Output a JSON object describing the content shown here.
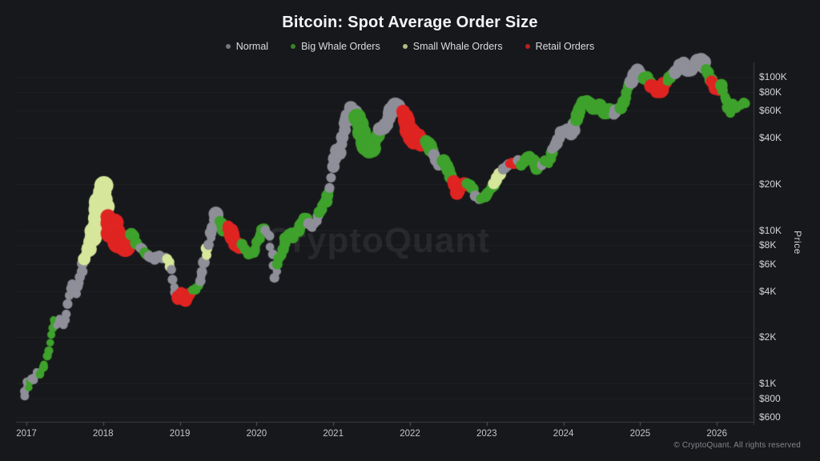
{
  "page": {
    "title": "Bitcoin: Spot Average Order Size",
    "watermark": "CryptoQuant",
    "footer": "© CryptoQuant. All rights reserved"
  },
  "colors": {
    "background": "#17181b",
    "normal": "#8f8f99",
    "big_whale": "#3ea22c",
    "small_whale": "#d6e79c",
    "retail": "#df2422",
    "grid": "rgba(255,255,255,0.045)",
    "axis_line": "#3c3d43",
    "tick_mark": "#55565c"
  },
  "legend": {
    "items": [
      {
        "key": "normal",
        "label": "Normal"
      },
      {
        "key": "big_whale",
        "label": "Big Whale Orders"
      },
      {
        "key": "small_whale",
        "label": "Small Whale Orders"
      },
      {
        "key": "retail",
        "label": "Retail Orders"
      }
    ]
  },
  "chart_data": {
    "type": "scatter",
    "title": "Bitcoin: Spot Average Order Size",
    "xlabel": "",
    "ylabel": "Price",
    "y_scale": "log",
    "x_range": [
      2016.95,
      2026.4
    ],
    "y_range_usd": [
      600,
      130000
    ],
    "grid": "horizontal",
    "legend_position": "top",
    "categories": {
      "n": "normal",
      "b": "big_whale",
      "s": "small_whale",
      "r": "retail"
    },
    "series_legend": [
      "Normal",
      "Big Whale Orders",
      "Small Whale Orders",
      "Retail Orders"
    ],
    "y_ticks": [
      {
        "label": "$100K",
        "value": 100
      },
      {
        "label": "$80K",
        "value": 80
      },
      {
        "label": "$60K",
        "value": 60
      },
      {
        "label": "$40K",
        "value": 40
      },
      {
        "label": "$20K",
        "value": 20
      },
      {
        "label": "$10K",
        "value": 10
      },
      {
        "label": "$8K",
        "value": 8
      },
      {
        "label": "$6K",
        "value": 6
      },
      {
        "label": "$4K",
        "value": 4
      },
      {
        "label": "$2K",
        "value": 2
      },
      {
        "label": "$1K",
        "value": 1
      },
      {
        "label": "$800",
        "value": 0.8
      },
      {
        "label": "$600",
        "value": 0.6
      }
    ],
    "x_ticks": [
      {
        "label": "2017",
        "value": 2017
      },
      {
        "label": "2018",
        "value": 2018
      },
      {
        "label": "2019",
        "value": 2019
      },
      {
        "label": "2020",
        "value": 2020
      },
      {
        "label": "2021",
        "value": 2021
      },
      {
        "label": "2022",
        "value": 2022
      },
      {
        "label": "2023",
        "value": 2023
      },
      {
        "label": "2024",
        "value": 2024
      },
      {
        "label": "2025",
        "value": 2025
      },
      {
        "label": "2026",
        "value": 2026
      }
    ],
    "points_format": [
      "year",
      "price_thousand_usd",
      "category",
      "radius_px"
    ],
    "points": [
      [
        2016.97,
        0.82,
        "n",
        5
      ],
      [
        2017.0,
        1.0,
        "n",
        5
      ],
      [
        2017.03,
        0.92,
        "b",
        5
      ],
      [
        2017.06,
        1.1,
        "n",
        5
      ],
      [
        2017.1,
        1.05,
        "n",
        5
      ],
      [
        2017.14,
        1.2,
        "n",
        5
      ],
      [
        2017.18,
        1.12,
        "b",
        5
      ],
      [
        2017.24,
        1.35,
        "b",
        5
      ],
      [
        2017.3,
        1.8,
        "b",
        5
      ],
      [
        2017.36,
        2.6,
        "b",
        5
      ],
      [
        2017.4,
        2.4,
        "n",
        5
      ],
      [
        2017.44,
        2.7,
        "n",
        5
      ],
      [
        2017.48,
        2.45,
        "n",
        5
      ],
      [
        2017.52,
        2.8,
        "n",
        6
      ],
      [
        2017.56,
        3.8,
        "n",
        6
      ],
      [
        2017.6,
        4.4,
        "n",
        6
      ],
      [
        2017.64,
        3.9,
        "n",
        6
      ],
      [
        2017.68,
        4.5,
        "n",
        6
      ],
      [
        2017.72,
        5.5,
        "n",
        6
      ],
      [
        2017.76,
        6.5,
        "s",
        7
      ],
      [
        2017.8,
        7.2,
        "s",
        8
      ],
      [
        2017.84,
        8.2,
        "s",
        9
      ],
      [
        2017.88,
        9.8,
        "s",
        10
      ],
      [
        2017.92,
        12.0,
        "s",
        11
      ],
      [
        2017.96,
        15.5,
        "s",
        12
      ],
      [
        2018.0,
        19.3,
        "s",
        12
      ],
      [
        2018.03,
        16.0,
        "s",
        11
      ],
      [
        2018.06,
        12.5,
        "r",
        11
      ],
      [
        2018.1,
        9.5,
        "r",
        13
      ],
      [
        2018.14,
        11.0,
        "r",
        13
      ],
      [
        2018.18,
        8.2,
        "r",
        13
      ],
      [
        2018.24,
        9.0,
        "r",
        13
      ],
      [
        2018.3,
        7.8,
        "r",
        12
      ],
      [
        2018.34,
        8.6,
        "r",
        11
      ],
      [
        2018.38,
        9.6,
        "b",
        8
      ],
      [
        2018.44,
        8.2,
        "b",
        7
      ],
      [
        2018.48,
        7.8,
        "n",
        6
      ],
      [
        2018.54,
        7.3,
        "b",
        6
      ],
      [
        2018.6,
        6.7,
        "n",
        6
      ],
      [
        2018.66,
        6.4,
        "n",
        6
      ],
      [
        2018.72,
        6.9,
        "n",
        6
      ],
      [
        2018.78,
        6.6,
        "n",
        6
      ],
      [
        2018.84,
        6.6,
        "s",
        7
      ],
      [
        2018.89,
        5.4,
        "n",
        6
      ],
      [
        2018.93,
        4.3,
        "n",
        6
      ],
      [
        2018.97,
        3.6,
        "r",
        7
      ],
      [
        2019.02,
        3.9,
        "r",
        8
      ],
      [
        2019.07,
        3.5,
        "r",
        8
      ],
      [
        2019.12,
        3.8,
        "r",
        7
      ],
      [
        2019.17,
        4.1,
        "b",
        6
      ],
      [
        2019.22,
        4.2,
        "b",
        6
      ],
      [
        2019.26,
        4.6,
        "n",
        6
      ],
      [
        2019.3,
        5.3,
        "n",
        6
      ],
      [
        2019.34,
        7.0,
        "s",
        7
      ],
      [
        2019.38,
        8.1,
        "n",
        6
      ],
      [
        2019.43,
        10.5,
        "n",
        7
      ],
      [
        2019.47,
        12.8,
        "n",
        8
      ],
      [
        2019.52,
        11.5,
        "b",
        7
      ],
      [
        2019.57,
        10.0,
        "b",
        7
      ],
      [
        2019.62,
        10.8,
        "r",
        8
      ],
      [
        2019.67,
        9.4,
        "r",
        9
      ],
      [
        2019.72,
        8.2,
        "r",
        9
      ],
      [
        2019.77,
        7.8,
        "r",
        8
      ],
      [
        2019.82,
        8.0,
        "b",
        6
      ],
      [
        2019.87,
        7.2,
        "b",
        6
      ],
      [
        2019.92,
        6.9,
        "b",
        6
      ],
      [
        2019.97,
        7.4,
        "b",
        6
      ],
      [
        2020.02,
        8.6,
        "b",
        6
      ],
      [
        2020.07,
        9.9,
        "b",
        6
      ],
      [
        2020.12,
        10.2,
        "n",
        6
      ],
      [
        2020.16,
        9.0,
        "n",
        6
      ],
      [
        2020.2,
        6.8,
        "n",
        6
      ],
      [
        2020.24,
        4.9,
        "n",
        6
      ],
      [
        2020.28,
        6.1,
        "b",
        6
      ],
      [
        2020.33,
        7.0,
        "b",
        6
      ],
      [
        2020.38,
        8.8,
        "b",
        7
      ],
      [
        2020.43,
        9.4,
        "b",
        7
      ],
      [
        2020.48,
        9.1,
        "b",
        7
      ],
      [
        2020.53,
        9.7,
        "b",
        7
      ],
      [
        2020.58,
        11.0,
        "b",
        7
      ],
      [
        2020.63,
        11.8,
        "b",
        7
      ],
      [
        2020.68,
        11.2,
        "n",
        6
      ],
      [
        2020.73,
        10.6,
        "n",
        6
      ],
      [
        2020.78,
        11.6,
        "n",
        6
      ],
      [
        2020.83,
        13.0,
        "b",
        7
      ],
      [
        2020.88,
        14.8,
        "b",
        7
      ],
      [
        2020.92,
        16.5,
        "b",
        7
      ],
      [
        2020.96,
        19.0,
        "n",
        7
      ],
      [
        2021.0,
        26.0,
        "n",
        7
      ],
      [
        2021.04,
        33.0,
        "n",
        8
      ],
      [
        2021.08,
        32.0,
        "n",
        8
      ],
      [
        2021.12,
        40.0,
        "n",
        8
      ],
      [
        2021.16,
        49.0,
        "n",
        8
      ],
      [
        2021.2,
        56.0,
        "n",
        9
      ],
      [
        2021.24,
        62.0,
        "n",
        9
      ],
      [
        2021.28,
        58.0,
        "n",
        9
      ],
      [
        2021.32,
        54.0,
        "b",
        10
      ],
      [
        2021.36,
        44.0,
        "b",
        11
      ],
      [
        2021.4,
        37.0,
        "b",
        11
      ],
      [
        2021.44,
        35.0,
        "b",
        11
      ],
      [
        2021.48,
        33.0,
        "b",
        10
      ],
      [
        2021.52,
        34.5,
        "b",
        10
      ],
      [
        2021.56,
        40.0,
        "b",
        9
      ],
      [
        2021.61,
        45.0,
        "n",
        8
      ],
      [
        2021.66,
        47.0,
        "n",
        8
      ],
      [
        2021.71,
        51.0,
        "n",
        8
      ],
      [
        2021.76,
        60.0,
        "n",
        9
      ],
      [
        2021.81,
        66.0,
        "n",
        9
      ],
      [
        2021.86,
        63.0,
        "n",
        9
      ],
      [
        2021.9,
        58.0,
        "r",
        9
      ],
      [
        2021.95,
        52.0,
        "r",
        10
      ],
      [
        2022.0,
        45.0,
        "r",
        11
      ],
      [
        2022.05,
        38.0,
        "r",
        11
      ],
      [
        2022.1,
        41.0,
        "r",
        10
      ],
      [
        2022.15,
        36.0,
        "r",
        9
      ],
      [
        2022.2,
        38.0,
        "b",
        8
      ],
      [
        2022.26,
        36.0,
        "b",
        8
      ],
      [
        2022.32,
        31.0,
        "n",
        7
      ],
      [
        2022.38,
        26.0,
        "n",
        7
      ],
      [
        2022.44,
        28.0,
        "b",
        8
      ],
      [
        2022.5,
        25.0,
        "b",
        8
      ],
      [
        2022.56,
        20.5,
        "r",
        8
      ],
      [
        2022.62,
        17.8,
        "r",
        9
      ],
      [
        2022.68,
        19.5,
        "r",
        8
      ],
      [
        2022.74,
        20.5,
        "b",
        7
      ],
      [
        2022.8,
        19.0,
        "b",
        7
      ],
      [
        2022.86,
        17.0,
        "n",
        6
      ],
      [
        2022.92,
        15.8,
        "b",
        6
      ],
      [
        2022.98,
        16.8,
        "b",
        7
      ],
      [
        2023.04,
        17.8,
        "b",
        7
      ],
      [
        2023.1,
        20.5,
        "s",
        7
      ],
      [
        2023.16,
        23.0,
        "s",
        7
      ],
      [
        2023.21,
        24.5,
        "n",
        6
      ],
      [
        2023.26,
        26.0,
        "n",
        6
      ],
      [
        2023.31,
        27.5,
        "r",
        6
      ],
      [
        2023.36,
        27.0,
        "r",
        6
      ],
      [
        2023.41,
        28.5,
        "n",
        6
      ],
      [
        2023.46,
        26.5,
        "b",
        7
      ],
      [
        2023.51,
        29.5,
        "b",
        7
      ],
      [
        2023.56,
        30.0,
        "b",
        7
      ],
      [
        2023.61,
        28.0,
        "b",
        7
      ],
      [
        2023.66,
        25.5,
        "b",
        7
      ],
      [
        2023.71,
        26.5,
        "n",
        6
      ],
      [
        2023.76,
        28.0,
        "b",
        6
      ],
      [
        2023.81,
        27.5,
        "b",
        6
      ],
      [
        2023.86,
        34.0,
        "n",
        7
      ],
      [
        2023.91,
        37.0,
        "n",
        7
      ],
      [
        2023.96,
        42.0,
        "n",
        7
      ],
      [
        2024.01,
        44.0,
        "n",
        8
      ],
      [
        2024.06,
        46.5,
        "n",
        8
      ],
      [
        2024.11,
        43.0,
        "n",
        8
      ],
      [
        2024.16,
        52.0,
        "b",
        8
      ],
      [
        2024.21,
        62.0,
        "b",
        8
      ],
      [
        2024.26,
        70.0,
        "b",
        8
      ],
      [
        2024.31,
        67.0,
        "b",
        8
      ],
      [
        2024.36,
        64.0,
        "b",
        8
      ],
      [
        2024.41,
        62.0,
        "b",
        8
      ],
      [
        2024.46,
        66.0,
        "b",
        8
      ],
      [
        2024.51,
        60.0,
        "b",
        8
      ],
      [
        2024.56,
        57.0,
        "b",
        8
      ],
      [
        2024.61,
        62.0,
        "b",
        8
      ],
      [
        2024.66,
        58.0,
        "n",
        7
      ],
      [
        2024.71,
        60.0,
        "n",
        7
      ],
      [
        2024.76,
        64.0,
        "b",
        7
      ],
      [
        2024.81,
        72.0,
        "b",
        7
      ],
      [
        2024.85,
        84.0,
        "b",
        7
      ],
      [
        2024.89,
        95.0,
        "n",
        8
      ],
      [
        2024.93,
        102.0,
        "n",
        8
      ],
      [
        2024.97,
        108.0,
        "n",
        8
      ],
      [
        2025.01,
        104.0,
        "n",
        8
      ],
      [
        2025.05,
        99.0,
        "b",
        7
      ],
      [
        2025.1,
        96.0,
        "b",
        7
      ],
      [
        2025.15,
        88.0,
        "r",
        8
      ],
      [
        2025.2,
        84.0,
        "r",
        9
      ],
      [
        2025.25,
        80.0,
        "r",
        9
      ],
      [
        2025.3,
        86.0,
        "r",
        8
      ],
      [
        2025.35,
        95.0,
        "b",
        7
      ],
      [
        2025.4,
        100.0,
        "b",
        7
      ],
      [
        2025.45,
        106.0,
        "n",
        7
      ],
      [
        2025.5,
        112.0,
        "n",
        8
      ],
      [
        2025.54,
        122.0,
        "n",
        8
      ],
      [
        2025.58,
        118.0,
        "n",
        8
      ],
      [
        2025.62,
        110.0,
        "n",
        8
      ],
      [
        2025.66,
        112.0,
        "n",
        8
      ],
      [
        2025.7,
        120.0,
        "n",
        8
      ],
      [
        2025.76,
        126.0,
        "n",
        9
      ],
      [
        2025.82,
        124.0,
        "n",
        9
      ],
      [
        2025.86,
        112.0,
        "b",
        8
      ],
      [
        2025.9,
        100.0,
        "b",
        7
      ],
      [
        2025.94,
        92.0,
        "r",
        8
      ],
      [
        2025.98,
        86.0,
        "r",
        9
      ],
      [
        2026.02,
        84.0,
        "r",
        8
      ],
      [
        2026.06,
        88.0,
        "b",
        7
      ],
      [
        2026.1,
        75.0,
        "b",
        7
      ],
      [
        2026.14,
        64.0,
        "b",
        7
      ],
      [
        2026.18,
        59.0,
        "b",
        7
      ],
      [
        2026.22,
        66.0,
        "b",
        6
      ],
      [
        2026.26,
        62.0,
        "b",
        6
      ],
      [
        2026.3,
        64.0,
        "b",
        6
      ],
      [
        2026.34,
        69.0,
        "b",
        6
      ],
      [
        2026.37,
        67.0,
        "b",
        6
      ]
    ]
  }
}
